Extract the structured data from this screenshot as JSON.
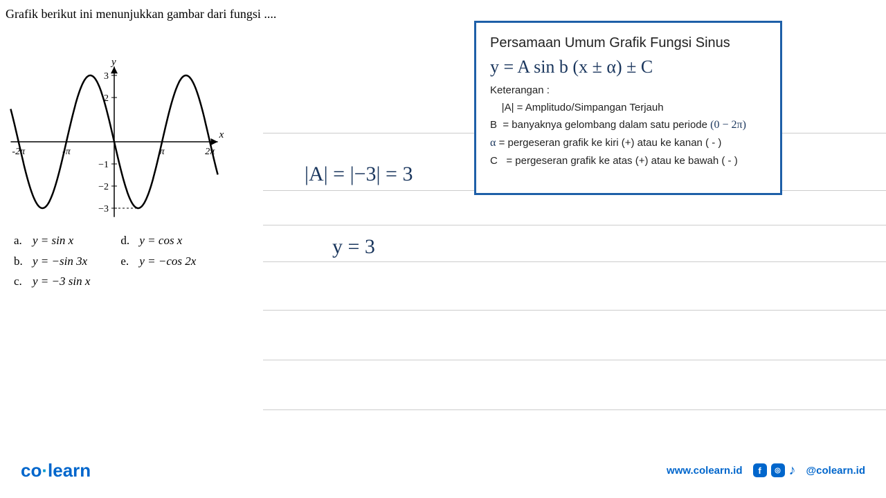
{
  "question": "Grafik berikut ini menunjukkan gambar dari fungsi ....",
  "graph": {
    "type": "line",
    "title": "",
    "x_label": "x",
    "y_label": "y",
    "xlim": [
      -6.8,
      6.8
    ],
    "ylim": [
      -3.5,
      3.5
    ],
    "y_ticks": [
      3,
      2,
      -1,
      -2,
      -3
    ],
    "x_tick_labels": [
      "-2π",
      "-π",
      "π",
      "2π"
    ],
    "x_tick_positions": [
      -6.283,
      -3.1416,
      3.1416,
      6.283
    ],
    "series": {
      "formula": "-3*sin(x)",
      "color": "#000000",
      "linewidth": 2.5
    },
    "axis_color": "#000000",
    "dash_marker_y": -3,
    "background_color": "#ffffff"
  },
  "options": {
    "a": "y = sin x",
    "b": "y = −sin 3x",
    "c": "y = −3 sin x",
    "d": "y = cos x",
    "e": "y = −cos 2x"
  },
  "info_box": {
    "title": "Persamaan Umum Grafik Fungsi Sinus",
    "equation": "y = A sin b (x ± α) ± C",
    "keterangan_label": "Keterangan :",
    "lines": {
      "A": "|A| = Amplitudo/Simpangan Terjauh",
      "B_label": "B",
      "B_text": "= banyaknya gelombang dalam satu periode",
      "B_hw": "(0 − 2π)",
      "alpha_label": "α",
      "alpha_text": "= pergeseran grafik ke kiri (+) atau ke kanan ( - )",
      "C_label": "C",
      "C_text": "= pergeseran grafik ke atas (+) atau ke bawah ( - )"
    },
    "border_color": "#1e5fa8"
  },
  "handwriting": {
    "eq1": "|A| = |−3| = 3",
    "eq2": "y =  3"
  },
  "ruled_lines": {
    "color": "#cccccc",
    "positions_y": [
      192,
      275,
      325,
      378,
      448,
      520,
      592
    ]
  },
  "footer": {
    "logo_text_1": "co",
    "logo_text_2": "learn",
    "url": "www.colearn.id",
    "handle": "@colearn.id"
  },
  "colors": {
    "handwriting": "#1a365d",
    "brand": "#0066cc",
    "text": "#000000"
  }
}
